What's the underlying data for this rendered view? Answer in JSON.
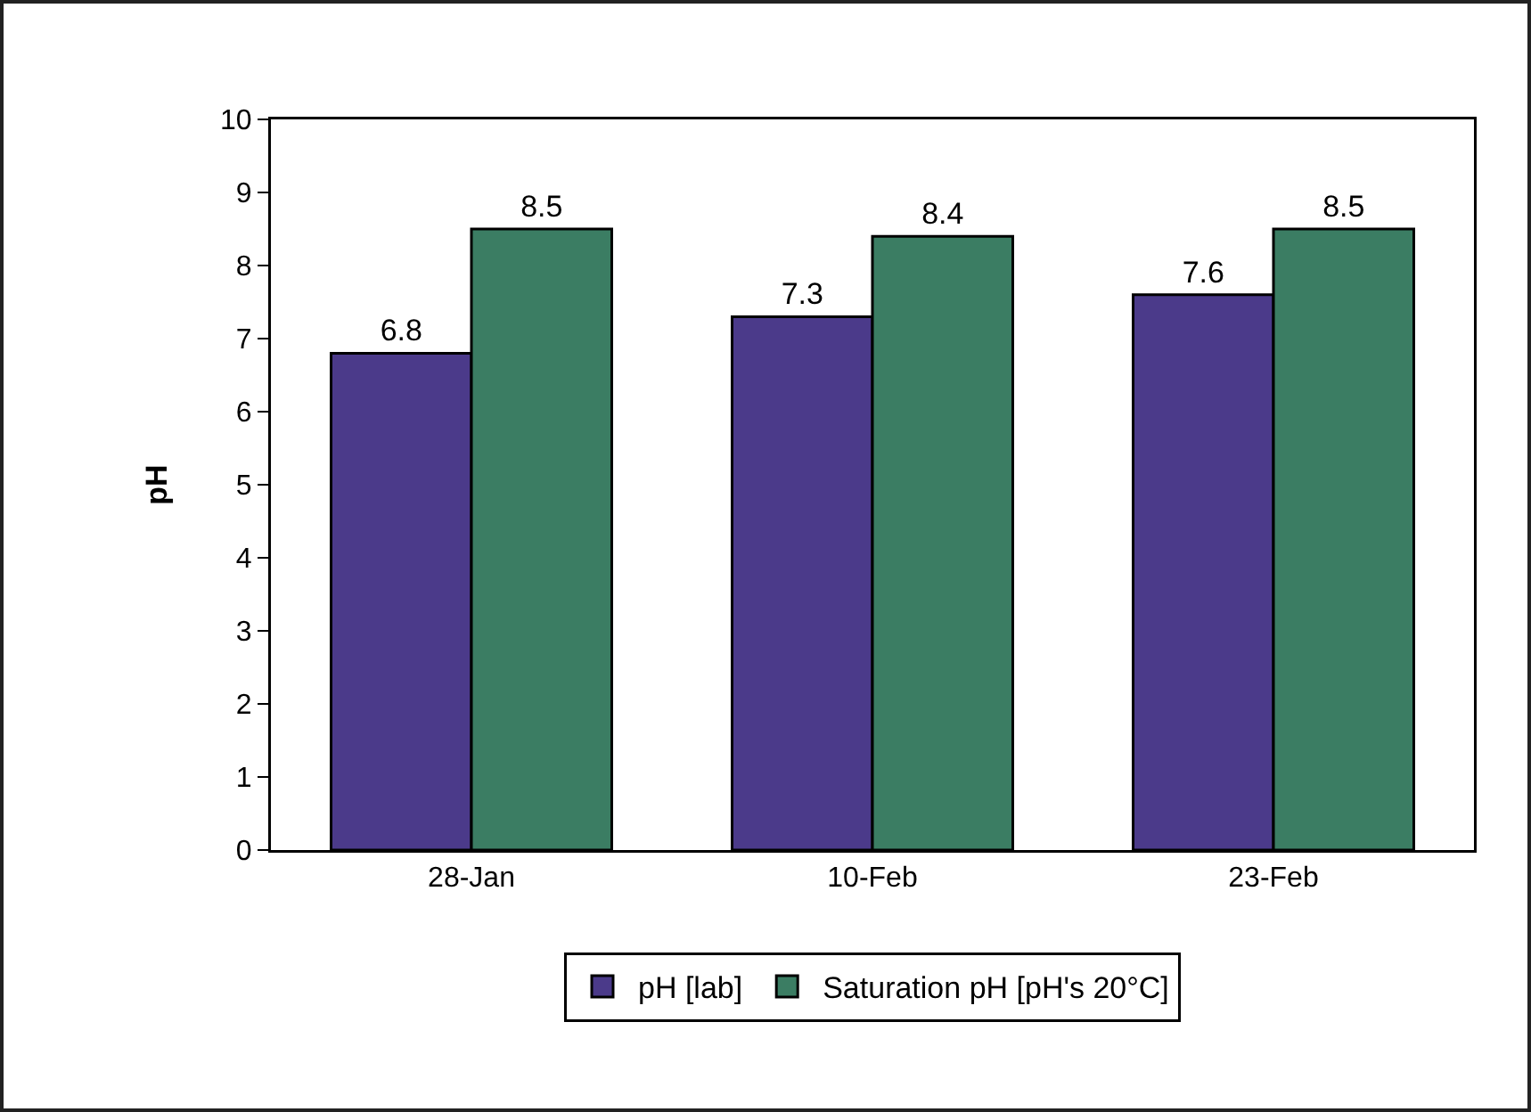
{
  "chart_data": {
    "type": "bar",
    "ylabel": "pH",
    "categories": [
      "28-Jan",
      "10-Feb",
      "23-Feb"
    ],
    "series": [
      {
        "name": "pH [lab]",
        "color": "#4b3a8a",
        "values": [
          6.8,
          7.3,
          7.6
        ]
      },
      {
        "name": "Saturation pH [pH's 20°C]",
        "color": "#3b7d63",
        "values": [
          8.5,
          8.4,
          8.5
        ]
      }
    ],
    "ylim": [
      0,
      10
    ],
    "yticks": [
      0,
      1,
      2,
      3,
      4,
      5,
      6,
      7,
      8,
      9,
      10
    ],
    "grid": false,
    "legend": "bottom",
    "data_labels": true
  }
}
